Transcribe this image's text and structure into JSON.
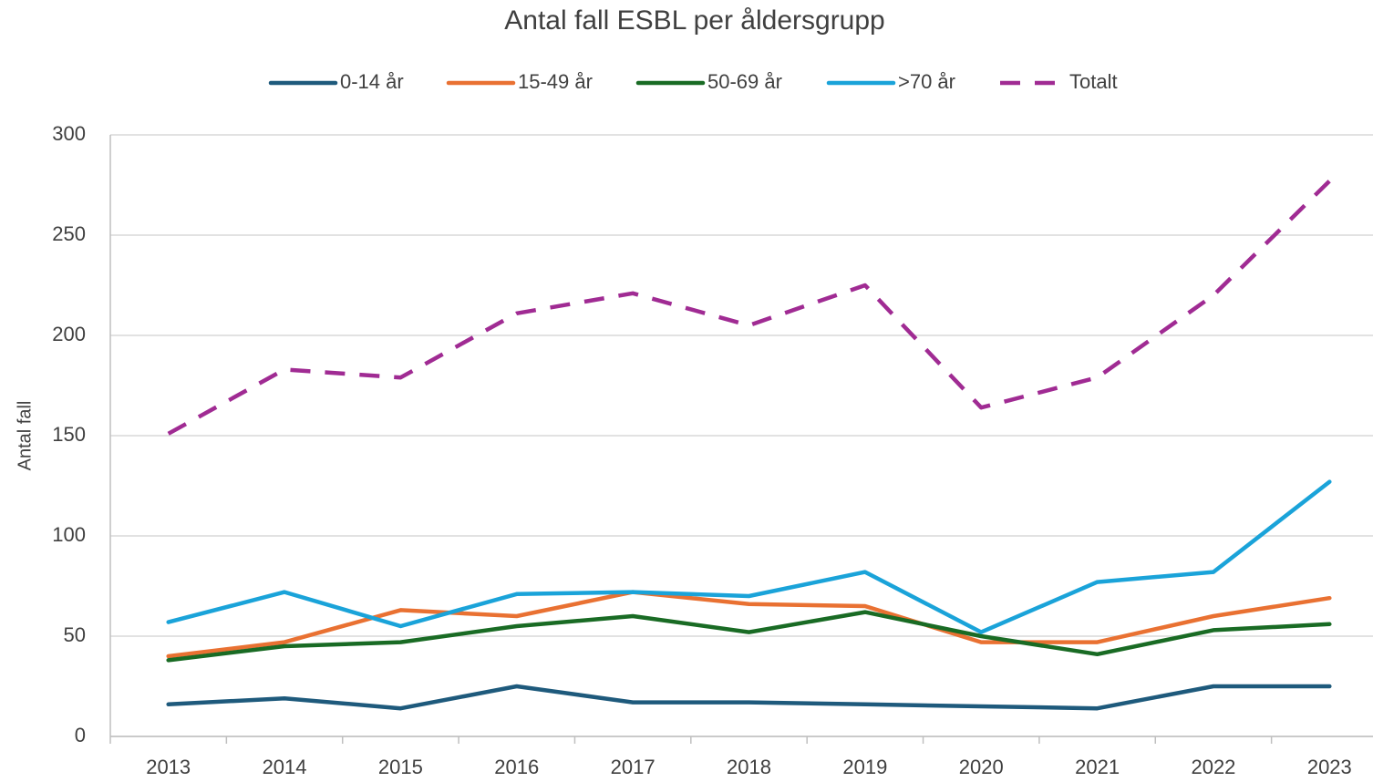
{
  "chart_data": {
    "type": "line",
    "title": "Antal fall ESBL per åldersgrupp",
    "y_label": "Antal fall",
    "categories": [
      "2013",
      "2014",
      "2015",
      "2016",
      "2017",
      "2018",
      "2019",
      "2020",
      "2021",
      "2022",
      "2023"
    ],
    "series": [
      {
        "name": "0-14 år",
        "color": "#1e5a7c",
        "values": [
          16,
          19,
          14,
          25,
          17,
          17,
          16,
          15,
          14,
          25,
          25
        ]
      },
      {
        "name": "15-49 år",
        "color": "#e97132",
        "values": [
          40,
          47,
          63,
          60,
          72,
          66,
          65,
          47,
          47,
          60,
          69
        ]
      },
      {
        "name": "50-69 år",
        "color": "#196b24",
        "values": [
          38,
          45,
          47,
          55,
          60,
          52,
          62,
          50,
          41,
          53,
          56
        ]
      },
      {
        "name": ">70 år",
        "color": "#1aa3d9",
        "values": [
          57,
          72,
          55,
          71,
          72,
          70,
          82,
          52,
          77,
          82,
          127
        ]
      },
      {
        "name": "Totalt",
        "color": "#a02b93",
        "dashed": true,
        "values": [
          151,
          183,
          179,
          211,
          221,
          205,
          225,
          164,
          179,
          220,
          277
        ]
      }
    ],
    "ylim": [
      0,
      300
    ],
    "yticks": [
      0,
      50,
      100,
      150,
      200,
      250,
      300
    ],
    "grid": true,
    "legend": "top"
  }
}
